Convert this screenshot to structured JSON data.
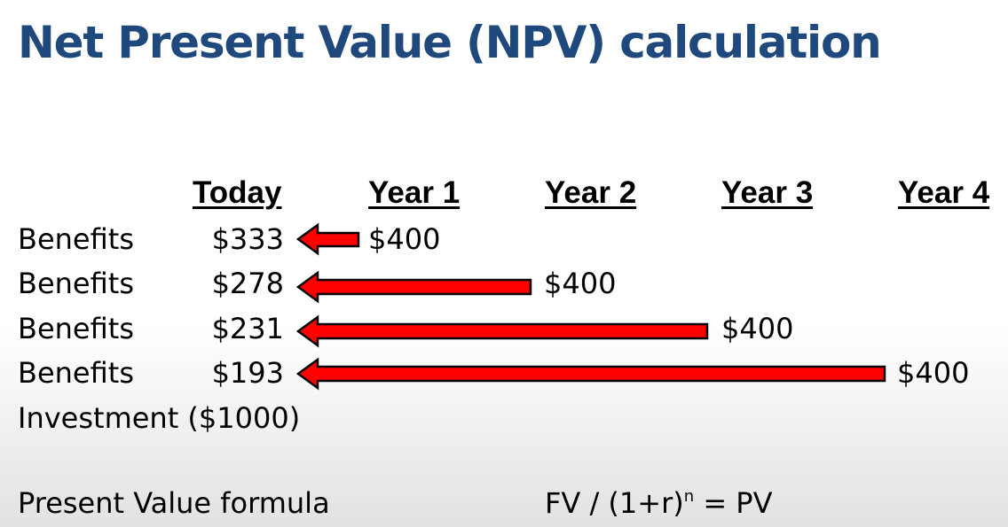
{
  "title": "Net Present Value (NPV) calculation",
  "columns": [
    "Today",
    "Year 1",
    "Year 2",
    "Year 3",
    "Year 4"
  ],
  "rows": [
    {
      "label": "Benefits",
      "present_value": "$333",
      "future_value": "$400",
      "year": 1
    },
    {
      "label": "Benefits",
      "present_value": "$278",
      "future_value": "$400",
      "year": 2
    },
    {
      "label": "Benefits",
      "present_value": "$231",
      "future_value": "$400",
      "year": 3
    },
    {
      "label": "Benefits",
      "present_value": "$193",
      "future_value": "$400",
      "year": 4
    }
  ],
  "investment": "Investment ($1000)",
  "formula": {
    "label": "Present Value formula",
    "expression_start": "FV / (1+r)",
    "exponent": "n",
    "expression_end": " = PV"
  },
  "colors": {
    "title": "#1f497d",
    "arrow_fill": "#ff0000",
    "arrow_stroke": "#000000"
  },
  "icons": {
    "arrow": "left-arrow-icon"
  }
}
